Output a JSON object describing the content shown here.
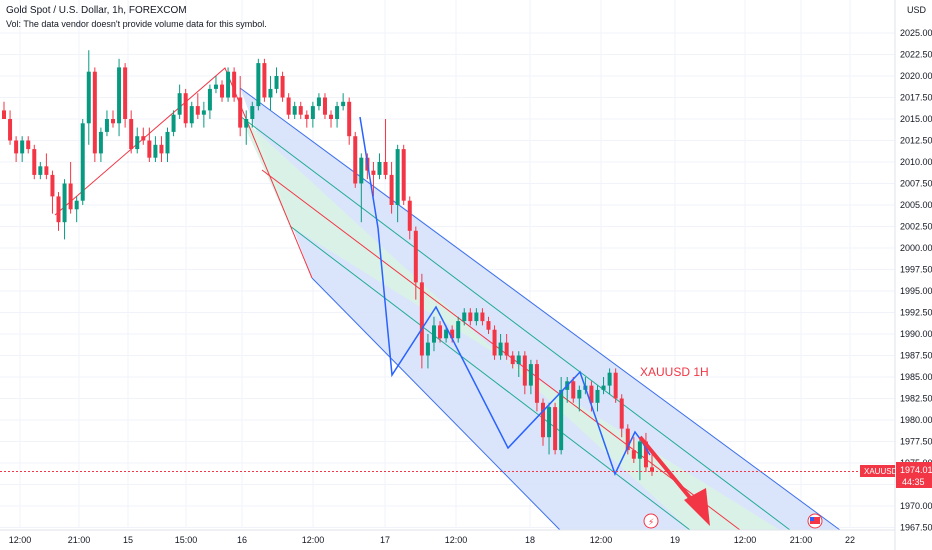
{
  "header": {
    "title": "Gold Spot / U.S. Dollar, 1h, FOREXCOM",
    "volume_note": "Vol: The data vendor doesn't provide volume data for this symbol.",
    "currency": "USD"
  },
  "annotation": {
    "label": "XAUUSD 1H",
    "color": "#f23645"
  },
  "price_tag": {
    "symbol": "XAUUSD",
    "price": "1974.01",
    "countdown": "44:35",
    "color": "#f23645"
  },
  "colors": {
    "up": "#089981",
    "down": "#f23645",
    "channel_fill": "#d6e2fb",
    "channel_line": "#3d70ec",
    "mid_fill": "#d9f2e4",
    "mid_line": "#22ab94",
    "median_line": "#f23645",
    "zigzag": "#2962ff",
    "arrow": "#f23645",
    "grid": "#f0f3fa"
  },
  "chart_data": {
    "type": "candlestick",
    "symbol": "XAUUSD",
    "timeframe": "1h",
    "ylabel": "USD",
    "ylim": [
      1967.5,
      2027.5
    ],
    "y_ticks": [
      "2025.00",
      "2022.50",
      "2020.00",
      "2017.50",
      "2015.00",
      "2012.50",
      "2010.00",
      "2007.50",
      "2005.00",
      "2002.50",
      "2000.00",
      "1997.50",
      "1995.00",
      "1992.50",
      "1990.00",
      "1987.50",
      "1985.00",
      "1982.50",
      "1980.00",
      "1977.50",
      "1975.00",
      "1972.50",
      "1970.00",
      "1967.50"
    ],
    "x_ticks": [
      "12:00",
      "21:00",
      "15",
      "15:00",
      "16",
      "12:00",
      "17",
      "12:00",
      "18",
      "12:00",
      "19",
      "12:00",
      "21:00",
      "22"
    ],
    "last_price": 1974.01,
    "candles": [
      [
        2016,
        2017,
        2015,
        2015
      ],
      [
        2015,
        2016,
        2012,
        2012.5
      ],
      [
        2012.5,
        2013,
        2010,
        2011
      ],
      [
        2011,
        2013,
        2010,
        2012.5
      ],
      [
        2012.5,
        2013,
        2011,
        2011.5
      ],
      [
        2011.5,
        2012,
        2008,
        2008.5
      ],
      [
        2008.5,
        2010,
        2008,
        2009.5
      ],
      [
        2009.5,
        2011,
        2008,
        2008.5
      ],
      [
        2008.5,
        2009,
        2004,
        2006
      ],
      [
        2006,
        2006.5,
        2002,
        2003
      ],
      [
        2003,
        2008,
        2001,
        2007.5
      ],
      [
        2007.5,
        2010,
        2004,
        2004.5
      ],
      [
        2004.5,
        2006,
        2003,
        2005.5
      ],
      [
        2005.5,
        2015,
        2005,
        2014.5
      ],
      [
        2014.5,
        2023,
        2012,
        2020.5
      ],
      [
        2020.5,
        2021,
        2010,
        2011
      ],
      [
        2011,
        2014,
        2010,
        2013.5
      ],
      [
        2013.5,
        2016,
        2013,
        2015
      ],
      [
        2015,
        2016,
        2014,
        2014.5
      ],
      [
        2014.5,
        2022,
        2013,
        2021
      ],
      [
        2021,
        2021.5,
        2014,
        2015
      ],
      [
        2015,
        2016,
        2011,
        2011.5
      ],
      [
        2011.5,
        2014,
        2011,
        2013
      ],
      [
        2013,
        2014,
        2012,
        2012.5
      ],
      [
        2012.5,
        2014,
        2010,
        2010.5
      ],
      [
        2010.5,
        2013,
        2010,
        2012
      ],
      [
        2012,
        2013,
        2010,
        2011
      ],
      [
        2011,
        2014,
        2010,
        2013.5
      ],
      [
        2013.5,
        2016,
        2013,
        2015.5
      ],
      [
        2015.5,
        2019,
        2015,
        2018
      ],
      [
        2018,
        2018.5,
        2014,
        2014.5
      ],
      [
        2014.5,
        2017,
        2014,
        2016.5
      ],
      [
        2016.5,
        2018,
        2015,
        2015.5
      ],
      [
        2015.5,
        2017,
        2014,
        2016
      ],
      [
        2016,
        2019,
        2015,
        2018.5
      ],
      [
        2018.5,
        2020,
        2018,
        2019
      ],
      [
        2019,
        2019.5,
        2017,
        2017.5
      ],
      [
        2017.5,
        2021,
        2017,
        2020.5
      ],
      [
        2020.5,
        2021,
        2017,
        2017.5
      ],
      [
        2017.5,
        2020,
        2013,
        2014
      ],
      [
        2014,
        2016,
        2012,
        2015
      ],
      [
        2015,
        2017,
        2014,
        2016.5
      ],
      [
        2016.5,
        2022,
        2016,
        2021.5
      ],
      [
        2021.5,
        2022,
        2017,
        2017.5
      ],
      [
        2017.5,
        2020,
        2016,
        2018.5
      ],
      [
        2018.5,
        2021,
        2018,
        2020
      ],
      [
        2020,
        2020.5,
        2017,
        2017.5
      ],
      [
        2017.5,
        2018,
        2015,
        2015.5
      ],
      [
        2015.5,
        2017,
        2015,
        2016.5
      ],
      [
        2016.5,
        2017,
        2015,
        2015.5
      ],
      [
        2015.5,
        2016,
        2014,
        2015
      ],
      [
        2015,
        2017,
        2014,
        2016.5
      ],
      [
        2016.5,
        2018,
        2016,
        2017.5
      ],
      [
        2017.5,
        2018,
        2015,
        2015.5
      ],
      [
        2015.5,
        2016,
        2014,
        2015
      ],
      [
        2015,
        2017,
        2014,
        2016.5
      ],
      [
        2016.5,
        2018,
        2016,
        2017
      ],
      [
        2017,
        2017.5,
        2012,
        2013
      ],
      [
        2013,
        2013.5,
        2007,
        2007.5
      ],
      [
        2007.5,
        2011,
        2003,
        2010.5
      ],
      [
        2010.5,
        2011,
        2008,
        2009
      ],
      [
        2009,
        2010,
        2006,
        2008.5
      ],
      [
        2008.5,
        2011,
        2008,
        2010
      ],
      [
        2010,
        2015,
        2008,
        2008.5
      ],
      [
        2008.5,
        2010,
        2004,
        2005
      ],
      [
        2005,
        2012,
        2003,
        2011.5
      ],
      [
        2011.5,
        2012,
        2005,
        2005.5
      ],
      [
        2005.5,
        2006,
        2001,
        2002
      ],
      [
        2002,
        2002.5,
        1994,
        1996
      ],
      [
        1996,
        1997,
        1986,
        1987.5
      ],
      [
        1987.5,
        1990,
        1986,
        1989
      ],
      [
        1989,
        1992,
        1988,
        1991
      ],
      [
        1991,
        1991.5,
        1989,
        1989.5
      ],
      [
        1989.5,
        1991,
        1989,
        1990.5
      ],
      [
        1990.5,
        1991,
        1989,
        1989.5
      ],
      [
        1989.5,
        1992,
        1989,
        1991.5
      ],
      [
        1991.5,
        1993,
        1991,
        1992.5
      ],
      [
        1992.5,
        1993,
        1991,
        1991.5
      ],
      [
        1991.5,
        1993,
        1991,
        1992.5
      ],
      [
        1992.5,
        1993,
        1991,
        1991.5
      ],
      [
        1991.5,
        1992,
        1990,
        1990.5
      ],
      [
        1990.5,
        1991,
        1987,
        1987.5
      ],
      [
        1987.5,
        1990,
        1987,
        1989
      ],
      [
        1989,
        1990,
        1987,
        1987.5
      ],
      [
        1987.5,
        1988,
        1986,
        1986.5
      ],
      [
        1986.5,
        1988,
        1985,
        1987.5
      ],
      [
        1987.5,
        1988,
        1983,
        1984
      ],
      [
        1984,
        1987,
        1983,
        1986.5
      ],
      [
        1986.5,
        1987,
        1981,
        1982
      ],
      [
        1982,
        1982.5,
        1977,
        1978
      ],
      [
        1978,
        1982,
        1976,
        1981.5
      ],
      [
        1981.5,
        1982,
        1976,
        1976.5
      ],
      [
        1976.5,
        1985,
        1976,
        1983.5
      ],
      [
        1983.5,
        1985,
        1982,
        1984.5
      ],
      [
        1984.5,
        1985,
        1982,
        1982.5
      ],
      [
        1982.5,
        1984,
        1981,
        1983.5
      ],
      [
        1983.5,
        1985,
        1983,
        1984
      ],
      [
        1984,
        1984.5,
        1981,
        1982
      ],
      [
        1982,
        1984,
        1981,
        1983.5
      ],
      [
        1983.5,
        1985,
        1983,
        1984
      ],
      [
        1984,
        1986,
        1983,
        1985.5
      ],
      [
        1985.5,
        1986,
        1982,
        1982.5
      ],
      [
        1982.5,
        1983,
        1978,
        1979
      ],
      [
        1979,
        1979.5,
        1976,
        1976.5
      ],
      [
        1976.5,
        1978,
        1975,
        1975.5
      ],
      [
        1975.5,
        1978,
        1973,
        1977.5
      ],
      [
        1977.5,
        1978.5,
        1974,
        1974.5
      ],
      [
        1974.5,
        1976,
        1973.5,
        1974
      ]
    ]
  }
}
